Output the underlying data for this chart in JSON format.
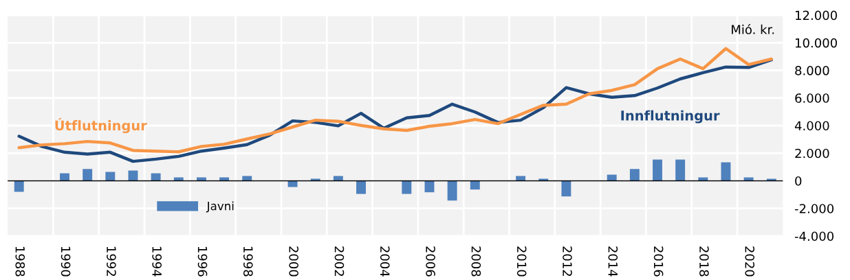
{
  "chart_data": {
    "type": "bar",
    "ylabel": "Mió. kr.",
    "categories": [
      "1988",
      null,
      "1990",
      null,
      "1992",
      null,
      "1994",
      null,
      "1996",
      null,
      "1998",
      null,
      "2000",
      null,
      "2002",
      null,
      "2004",
      null,
      "2006",
      null,
      "2008",
      null,
      "2010",
      null,
      "2012",
      null,
      "2014",
      null,
      "2016",
      null,
      "2018",
      null,
      "2020",
      null
    ],
    "series": [
      {
        "name": "Javni",
        "color": "#4f81bd",
        "values": [
          -800,
          0,
          550,
          850,
          650,
          750,
          550,
          250,
          250,
          250,
          350,
          0,
          -450,
          150,
          350,
          -950,
          0,
          -950,
          -830,
          -1430,
          -630,
          0,
          350,
          150,
          -1130,
          0,
          450,
          850,
          1540,
          1540,
          250,
          1340,
          250,
          150
        ]
      },
      {
        "name": "Innflutningur",
        "type": "line",
        "color": "#1f497d",
        "values": [
          3230,
          2490,
          2070,
          1940,
          2070,
          1410,
          1570,
          1770,
          2150,
          2370,
          2620,
          3310,
          4340,
          4230,
          3980,
          4890,
          3810,
          4560,
          4730,
          5550,
          4980,
          4230,
          4390,
          5300,
          6750,
          6300,
          6050,
          6170,
          6720,
          7380,
          7830,
          8240,
          8210,
          8760
        ]
      },
      {
        "name": "Útflutningur",
        "type": "line",
        "color": "#f79646",
        "values": [
          2400,
          2600,
          2690,
          2850,
          2740,
          2200,
          2150,
          2100,
          2490,
          2650,
          3030,
          3400,
          3900,
          4390,
          4310,
          4010,
          3760,
          3650,
          3950,
          4140,
          4440,
          4140,
          4810,
          5470,
          5550,
          6300,
          6550,
          6960,
          8120,
          8820,
          8120,
          9580,
          8420,
          8820
        ]
      }
    ],
    "ylim": [
      -4000,
      12000
    ],
    "yticks": [
      {
        "value": -4000,
        "label": "-4.000"
      },
      {
        "value": -2000,
        "label": "-2.000"
      },
      0,
      {
        "value": 2000,
        "label": "2.000"
      },
      {
        "value": 4000,
        "label": "4.000"
      },
      {
        "value": 6000,
        "label": "6.000"
      },
      {
        "value": 8000,
        "label": "8.000"
      },
      {
        "value": 10000,
        "label": "10.000"
      },
      {
        "value": 12000,
        "label": "12.000"
      }
    ],
    "grid": true,
    "legend": "bottom left"
  }
}
